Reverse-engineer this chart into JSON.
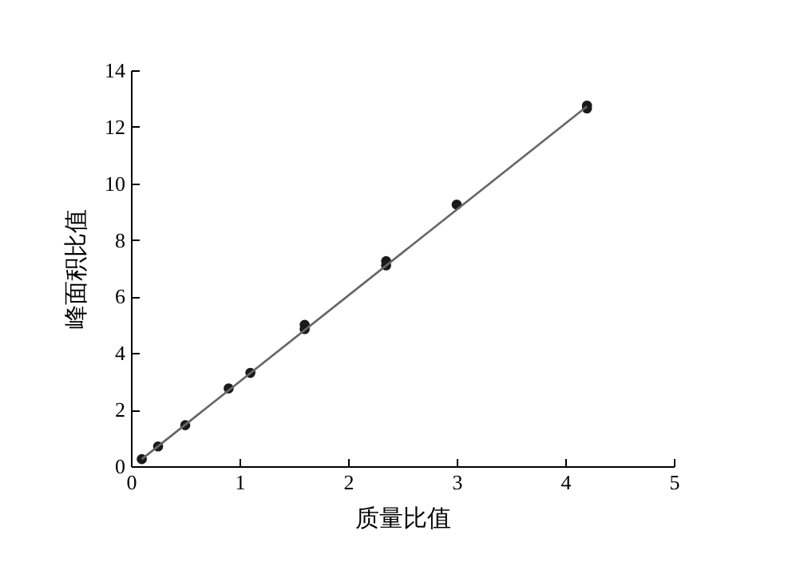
{
  "chart_data": {
    "type": "scatter",
    "xlabel": "质量比值",
    "ylabel": "峰面积比值",
    "xlim": [
      0,
      5
    ],
    "xticks": [
      0,
      1,
      2,
      3,
      4,
      5
    ],
    "ylim": [
      0,
      14
    ],
    "yticks": [
      0,
      2,
      4,
      6,
      8,
      10,
      12,
      14
    ],
    "grid": false,
    "marker": "circle",
    "series": [
      {
        "type": "scatter",
        "color": "#1a1a1a",
        "x": [
          0.1,
          0.25,
          0.5,
          0.9,
          1.1,
          1.6,
          1.6,
          2.35,
          2.35,
          3.0,
          4.2,
          4.2
        ],
        "values": [
          0.25,
          0.7,
          1.45,
          2.75,
          3.3,
          4.85,
          5.0,
          7.1,
          7.25,
          9.25,
          12.65,
          12.75
        ]
      },
      {
        "type": "line",
        "color": "#666666",
        "marker": "none",
        "line_style": "solid",
        "x": [
          0.1,
          4.2
        ],
        "values": [
          0.25,
          12.72
        ]
      }
    ]
  }
}
